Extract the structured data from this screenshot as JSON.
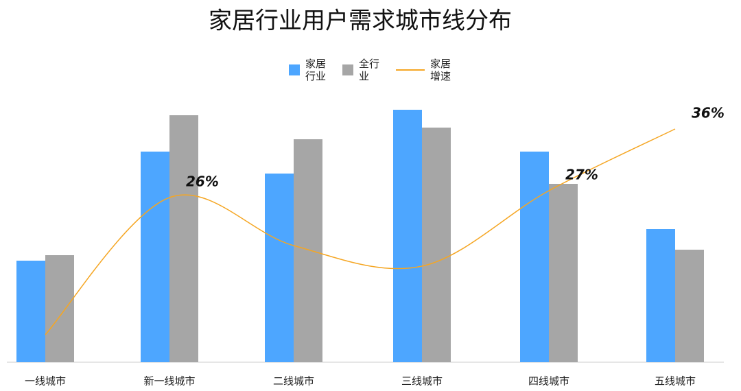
{
  "chart_data": {
    "type": "bar",
    "title": "家居行业用户需求城市线分布",
    "categories": [
      "一线城市",
      "新一线城市",
      "二线城市",
      "三线城市",
      "四线城市",
      "五线城市"
    ],
    "ylim": [
      0,
      400
    ],
    "y2lim": [
      2,
      42
    ],
    "grid": false,
    "legend": "top",
    "series": [
      {
        "name": "家居行业",
        "color": "#4da6ff",
        "type": "bar",
        "values": [
          148,
          307,
          275,
          368,
          307,
          194
        ]
      },
      {
        "name": "全行业",
        "color": "#a6a6a6",
        "type": "bar",
        "values": [
          156,
          360,
          325,
          342,
          260,
          164
        ]
      },
      {
        "name": "家居增速",
        "color": "#f5a623",
        "type": "line",
        "axis": "y2",
        "values": [
          6,
          26,
          19,
          16,
          27,
          36
        ],
        "value_labels": [
          null,
          "26%",
          null,
          null,
          "27%",
          "36%"
        ]
      }
    ]
  }
}
